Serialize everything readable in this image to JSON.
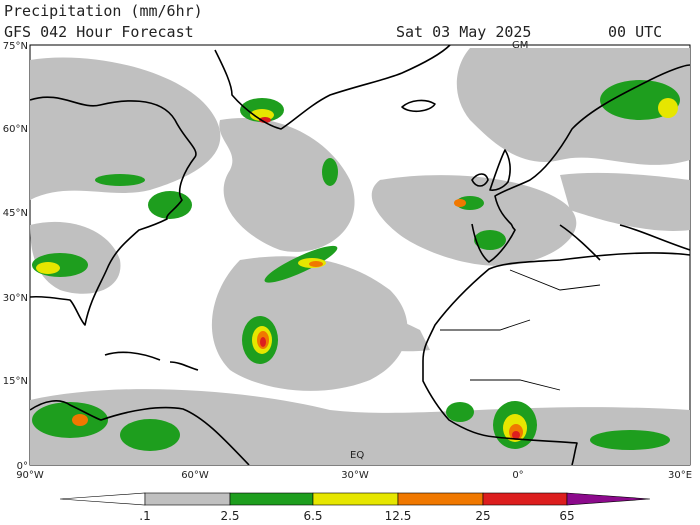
{
  "header": {
    "title": "Precipitation (mm/6hr)",
    "subtitle": "GFS 042 Hour Forecast",
    "date": "Sat 03 May 2025",
    "time": "00 UTC"
  },
  "map": {
    "latitude_labels": [
      "75°N",
      "60°N",
      "45°N",
      "30°N",
      "15°N",
      "0°"
    ],
    "longitude_labels": [
      "90°W",
      "60°W",
      "30°W",
      "0°",
      "30°E"
    ],
    "annotations": [
      "GM",
      "EQ"
    ]
  },
  "colorbar": {
    "labels": [
      ".1",
      "2.5",
      "6.5",
      "12.5",
      "25",
      "65"
    ]
  }
}
